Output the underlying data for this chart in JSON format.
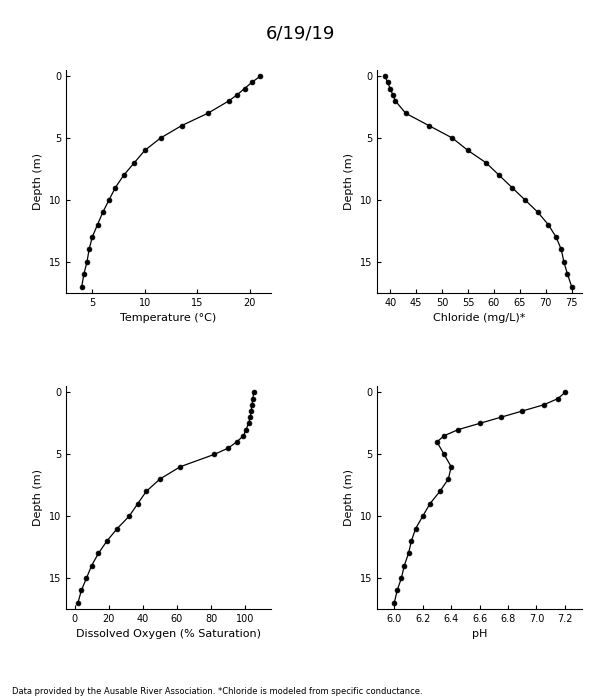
{
  "title": "6/19/19",
  "footnote": "Data provided by the Ausable River Association. *Chloride is modeled from specific conductance.",
  "temp": {
    "depth": [
      0,
      0.5,
      1,
      1.5,
      2,
      3,
      4,
      5,
      6,
      7,
      8,
      9,
      10,
      11,
      12,
      13,
      14,
      15,
      16,
      17
    ],
    "values": [
      21.0,
      20.2,
      19.5,
      18.8,
      18.0,
      16.0,
      13.5,
      11.5,
      10.0,
      9.0,
      8.0,
      7.2,
      6.6,
      6.0,
      5.5,
      5.0,
      4.7,
      4.5,
      4.2,
      4.0
    ],
    "xlabel": "Temperature (°C)",
    "xlim": [
      2.5,
      22.0
    ],
    "xticks": [
      5,
      10,
      15,
      20
    ]
  },
  "chloride": {
    "depth": [
      0,
      0.5,
      1,
      1.5,
      2,
      3,
      4,
      5,
      6,
      7,
      8,
      9,
      10,
      11,
      12,
      13,
      14,
      15,
      16,
      17
    ],
    "values": [
      39.0,
      39.5,
      40.0,
      40.5,
      41.0,
      43.0,
      47.5,
      52.0,
      55.0,
      58.5,
      61.0,
      63.5,
      66.0,
      68.5,
      70.5,
      72.0,
      73.0,
      73.5,
      74.2,
      75.0
    ],
    "xlabel": "Chloride (mg/L)*",
    "xlim": [
      37.5,
      77.0
    ],
    "xticks": [
      40,
      45,
      50,
      55,
      60,
      65,
      70,
      75
    ]
  },
  "do": {
    "depth": [
      0,
      0.5,
      1,
      1.5,
      2,
      2.5,
      3,
      3.5,
      4,
      4.5,
      5,
      6,
      7,
      8,
      9,
      10,
      11,
      12,
      13,
      14,
      15,
      16,
      17
    ],
    "values": [
      105.0,
      104.5,
      104.0,
      103.5,
      103.0,
      102.0,
      100.5,
      99.0,
      95.0,
      90.0,
      82.0,
      62.0,
      50.0,
      42.0,
      37.0,
      32.0,
      25.0,
      19.0,
      14.0,
      10.0,
      7.0,
      4.0,
      2.0
    ],
    "xlabel": "Dissolved Oxygen (% Saturation)",
    "xlim": [
      -5,
      115
    ],
    "xticks": [
      0,
      20,
      40,
      60,
      80,
      100
    ]
  },
  "ph": {
    "depth": [
      0,
      0.5,
      1,
      1.5,
      2,
      2.5,
      3,
      3.5,
      4,
      5,
      6,
      7,
      8,
      9,
      10,
      11,
      12,
      13,
      14,
      15,
      16,
      17
    ],
    "values": [
      7.2,
      7.15,
      7.05,
      6.9,
      6.75,
      6.6,
      6.45,
      6.35,
      6.3,
      6.35,
      6.4,
      6.38,
      6.32,
      6.25,
      6.2,
      6.15,
      6.12,
      6.1,
      6.07,
      6.05,
      6.02,
      6.0
    ],
    "xlabel": "pH",
    "xlim": [
      5.88,
      7.32
    ],
    "xticks": [
      6.0,
      6.2,
      6.4,
      6.6,
      6.8,
      7.0,
      7.2
    ]
  },
  "depth_lim": [
    17.5,
    -0.5
  ],
  "yticks": [
    0,
    5,
    10,
    15
  ],
  "ylabel": "Depth (m)"
}
